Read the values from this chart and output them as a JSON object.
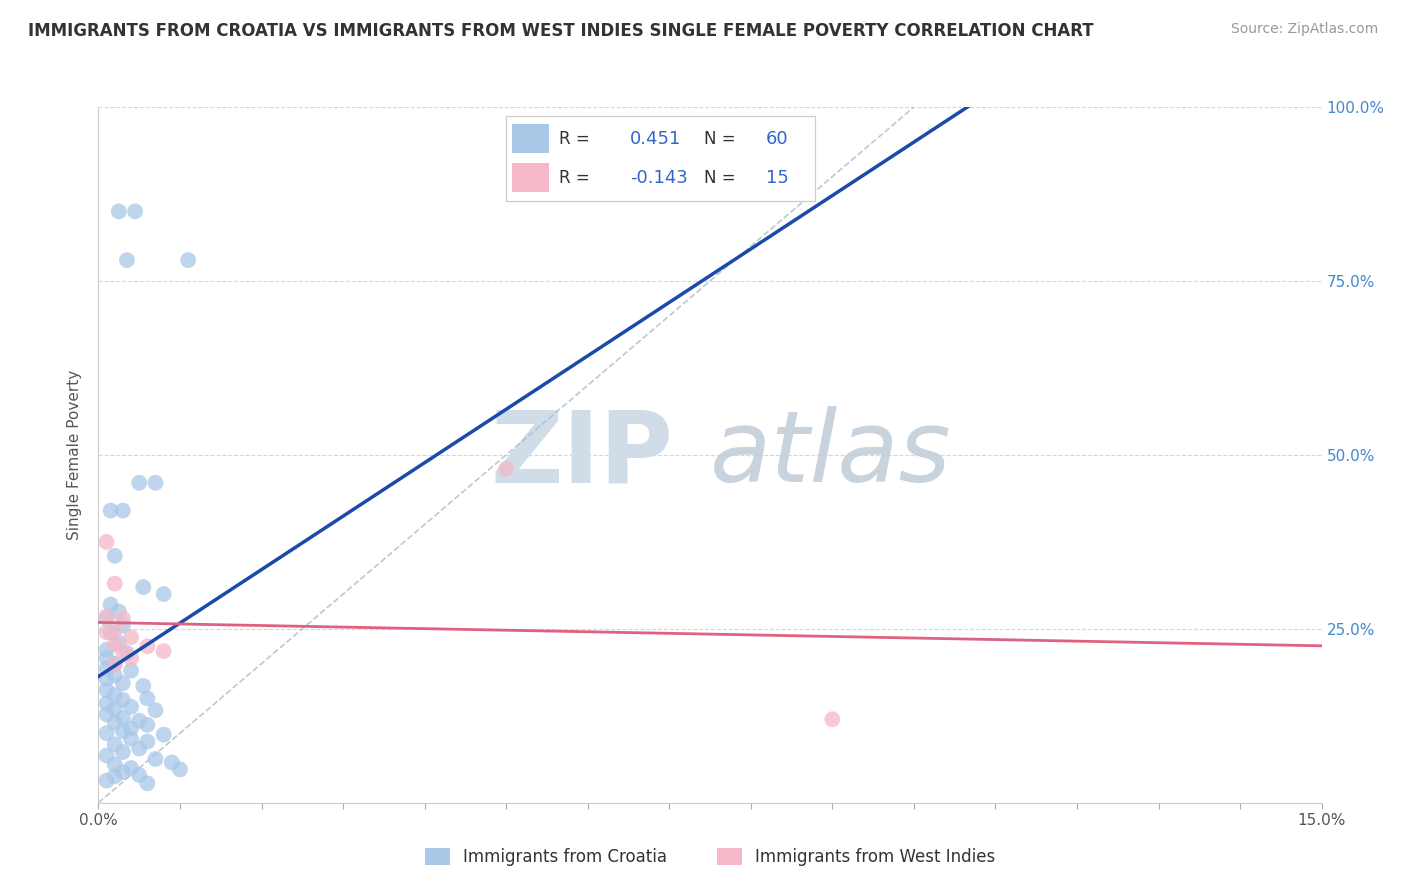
{
  "title": "IMMIGRANTS FROM CROATIA VS IMMIGRANTS FROM WEST INDIES SINGLE FEMALE POVERTY CORRELATION CHART",
  "source": "Source: ZipAtlas.com",
  "ylabel": "Single Female Poverty",
  "xlim": [
    0.0,
    0.15
  ],
  "ylim": [
    0.0,
    1.0
  ],
  "croatia_color": "#a8c8e8",
  "west_indies_color": "#f4b8c8",
  "croatia_line_color": "#1a4aaa",
  "west_indies_line_color": "#e06080",
  "diagonal_line_color": "#aabccc",
  "R_croatia": 0.451,
  "N_croatia": 60,
  "R_west_indies": -0.143,
  "N_west_indies": 15,
  "legend_label_croatia": "Immigrants from Croatia",
  "legend_label_west_indies": "Immigrants from West Indies",
  "croatia_scatter": [
    [
      0.0025,
      0.85
    ],
    [
      0.0045,
      0.85
    ],
    [
      0.0035,
      0.78
    ],
    [
      0.011,
      0.78
    ],
    [
      0.005,
      0.46
    ],
    [
      0.007,
      0.46
    ],
    [
      0.0015,
      0.42
    ],
    [
      0.003,
      0.42
    ],
    [
      0.002,
      0.355
    ],
    [
      0.0055,
      0.31
    ],
    [
      0.0015,
      0.285
    ],
    [
      0.0025,
      0.275
    ],
    [
      0.008,
      0.3
    ],
    [
      0.001,
      0.265
    ],
    [
      0.003,
      0.255
    ],
    [
      0.0015,
      0.245
    ],
    [
      0.0025,
      0.23
    ],
    [
      0.001,
      0.22
    ],
    [
      0.0035,
      0.215
    ],
    [
      0.001,
      0.208
    ],
    [
      0.002,
      0.2
    ],
    [
      0.001,
      0.193
    ],
    [
      0.004,
      0.19
    ],
    [
      0.002,
      0.183
    ],
    [
      0.001,
      0.178
    ],
    [
      0.003,
      0.172
    ],
    [
      0.0055,
      0.168
    ],
    [
      0.001,
      0.162
    ],
    [
      0.002,
      0.155
    ],
    [
      0.006,
      0.15
    ],
    [
      0.003,
      0.148
    ],
    [
      0.001,
      0.143
    ],
    [
      0.004,
      0.138
    ],
    [
      0.002,
      0.135
    ],
    [
      0.007,
      0.133
    ],
    [
      0.001,
      0.127
    ],
    [
      0.003,
      0.122
    ],
    [
      0.005,
      0.118
    ],
    [
      0.002,
      0.115
    ],
    [
      0.006,
      0.112
    ],
    [
      0.004,
      0.107
    ],
    [
      0.003,
      0.103
    ],
    [
      0.001,
      0.1
    ],
    [
      0.008,
      0.098
    ],
    [
      0.004,
      0.092
    ],
    [
      0.006,
      0.088
    ],
    [
      0.002,
      0.084
    ],
    [
      0.005,
      0.078
    ],
    [
      0.003,
      0.073
    ],
    [
      0.001,
      0.068
    ],
    [
      0.007,
      0.063
    ],
    [
      0.009,
      0.058
    ],
    [
      0.002,
      0.055
    ],
    [
      0.004,
      0.05
    ],
    [
      0.01,
      0.048
    ],
    [
      0.003,
      0.044
    ],
    [
      0.005,
      0.04
    ],
    [
      0.002,
      0.038
    ],
    [
      0.001,
      0.032
    ],
    [
      0.006,
      0.028
    ]
  ],
  "west_indies_scatter": [
    [
      0.001,
      0.375
    ],
    [
      0.002,
      0.315
    ],
    [
      0.001,
      0.268
    ],
    [
      0.003,
      0.265
    ],
    [
      0.002,
      0.248
    ],
    [
      0.001,
      0.245
    ],
    [
      0.004,
      0.238
    ],
    [
      0.002,
      0.228
    ],
    [
      0.006,
      0.225
    ],
    [
      0.003,
      0.218
    ],
    [
      0.05,
      0.48
    ],
    [
      0.008,
      0.218
    ],
    [
      0.004,
      0.208
    ],
    [
      0.09,
      0.12
    ],
    [
      0.002,
      0.198
    ]
  ],
  "background_color": "#ffffff",
  "grid_color": "#d0d8e8",
  "watermark_zip": "ZIP",
  "watermark_atlas": "atlas",
  "watermark_color": "#c8d8e8"
}
